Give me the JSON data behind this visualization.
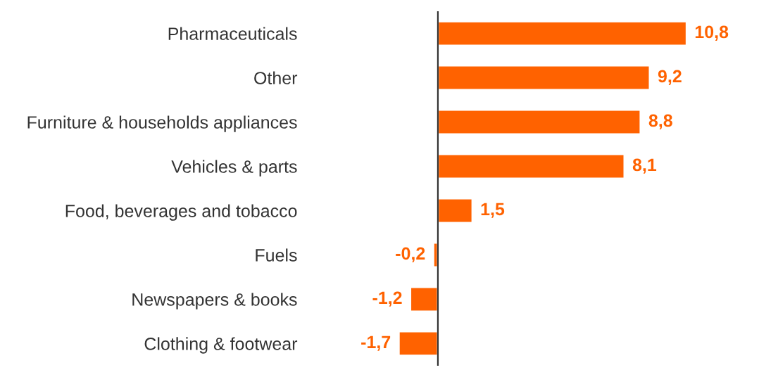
{
  "chart_data": {
    "type": "bar",
    "orientation": "horizontal",
    "categories": [
      "Pharmaceuticals",
      "Other",
      "Furniture & households appliances",
      "Vehicles & parts",
      "Food, beverages and tobacco",
      "Fuels",
      "Newspapers & books",
      "Clothing & footwear"
    ],
    "values": [
      10.8,
      9.2,
      8.8,
      8.1,
      1.5,
      -0.2,
      -1.2,
      -1.7
    ],
    "value_labels": [
      "10,8",
      "9,2",
      "8,8",
      "8,1",
      "1,5",
      "-0,2",
      "-1,2",
      "-1,7"
    ],
    "color": "#ff6200",
    "grid": false,
    "legend": false,
    "tick_labels": "y"
  }
}
